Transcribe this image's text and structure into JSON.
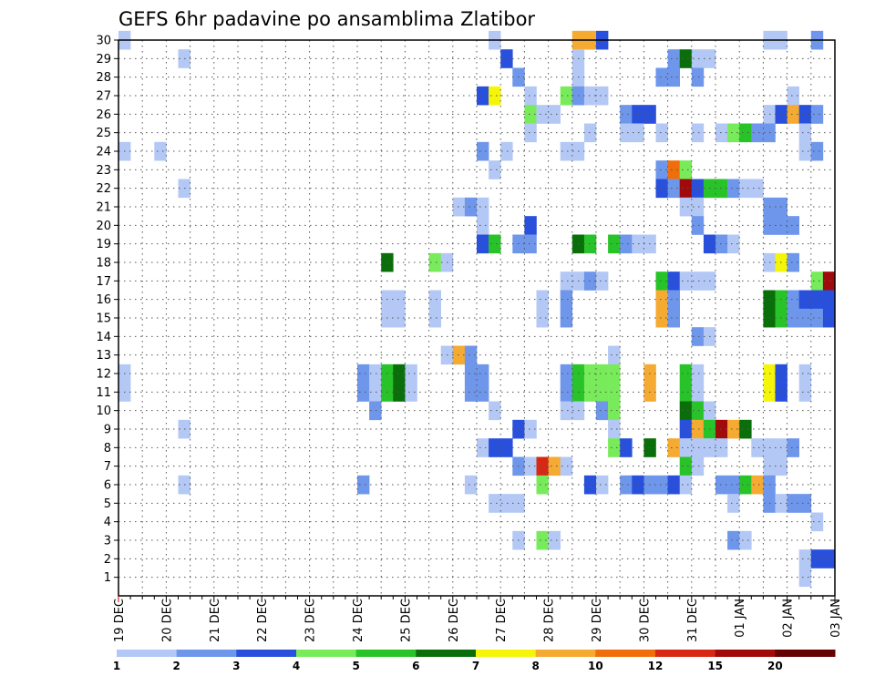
{
  "chart_data": {
    "type": "heatmap",
    "title": "GEFS 6hr padavine po ansamblima Zlatibor",
    "xlabel": "",
    "ylabel": "",
    "y_tick_labels": [
      "1",
      "2",
      "3",
      "4",
      "5",
      "6",
      "7",
      "8",
      "9",
      "10",
      "11",
      "12",
      "13",
      "14",
      "15",
      "16",
      "17",
      "18",
      "19",
      "20",
      "21",
      "22",
      "23",
      "24",
      "25",
      "26",
      "27",
      "28",
      "29",
      "30"
    ],
    "x_tick_labels": [
      "19 DEC",
      "20 DEC",
      "21 DEC",
      "22 DEC",
      "23 DEC",
      "24 DEC",
      "25 DEC",
      "26 DEC",
      "27 DEC",
      "28 DEC",
      "29 DEC",
      "30 DEC",
      "31 DEC",
      "01 JAN",
      "02 JAN",
      "03 JAN"
    ],
    "x_range_steps": [
      0,
      60
    ],
    "steps_per_day": 4,
    "y_range_members": [
      0,
      30
    ],
    "grid": true,
    "legend_placement": "bottom",
    "colorbar": {
      "labels": [
        "1",
        "2",
        "3",
        "4",
        "5",
        "6",
        "7",
        "8",
        "10",
        "12",
        "15",
        "20"
      ],
      "colors": [
        "#b4c8f5",
        "#6e96eb",
        "#2850dc",
        "#78eb5a",
        "#28c328",
        "#0a6e0a",
        "#f5f50a",
        "#f5aa32",
        "#f06e0a",
        "#d72814",
        "#a00a0a",
        "#640000"
      ]
    },
    "cells": [
      {
        "m": 30,
        "t": 1,
        "c": 1
      },
      {
        "m": 30,
        "t": 32,
        "c": 1
      },
      {
        "m": 30,
        "t": 39,
        "c": 8
      },
      {
        "m": 30,
        "t": 40,
        "c": 8
      },
      {
        "m": 30,
        "t": 41,
        "c": 3
      },
      {
        "m": 30,
        "t": 55,
        "c": 1
      },
      {
        "m": 30,
        "t": 56,
        "c": 1
      },
      {
        "m": 30,
        "t": 59,
        "c": 2
      },
      {
        "m": 29,
        "t": 6,
        "c": 1
      },
      {
        "m": 29,
        "t": 33,
        "c": 3
      },
      {
        "m": 29,
        "t": 39,
        "c": 1
      },
      {
        "m": 29,
        "t": 47,
        "c": 2
      },
      {
        "m": 29,
        "t": 48,
        "c": 6
      },
      {
        "m": 29,
        "t": 49,
        "c": 1
      },
      {
        "m": 29,
        "t": 50,
        "c": 1
      },
      {
        "m": 28,
        "t": 34,
        "c": 2
      },
      {
        "m": 28,
        "t": 39,
        "c": 1
      },
      {
        "m": 28,
        "t": 46,
        "c": 2
      },
      {
        "m": 28,
        "t": 47,
        "c": 2
      },
      {
        "m": 28,
        "t": 49,
        "c": 2
      },
      {
        "m": 27,
        "t": 31,
        "c": 3
      },
      {
        "m": 27,
        "t": 32,
        "c": 7
      },
      {
        "m": 27,
        "t": 35,
        "c": 1
      },
      {
        "m": 27,
        "t": 38,
        "c": 4
      },
      {
        "m": 27,
        "t": 39,
        "c": 2
      },
      {
        "m": 27,
        "t": 40,
        "c": 1
      },
      {
        "m": 27,
        "t": 41,
        "c": 1
      },
      {
        "m": 27,
        "t": 57,
        "c": 1
      },
      {
        "m": 26,
        "t": 35,
        "c": 4
      },
      {
        "m": 26,
        "t": 36,
        "c": 1
      },
      {
        "m": 26,
        "t": 37,
        "c": 1
      },
      {
        "m": 26,
        "t": 43,
        "c": 2
      },
      {
        "m": 26,
        "t": 44,
        "c": 3
      },
      {
        "m": 26,
        "t": 45,
        "c": 3
      },
      {
        "m": 26,
        "t": 55,
        "c": 1
      },
      {
        "m": 26,
        "t": 56,
        "c": 3
      },
      {
        "m": 26,
        "t": 57,
        "c": 8
      },
      {
        "m": 26,
        "t": 58,
        "c": 3
      },
      {
        "m": 26,
        "t": 59,
        "c": 2
      },
      {
        "m": 25,
        "t": 35,
        "c": 1
      },
      {
        "m": 25,
        "t": 40,
        "c": 1
      },
      {
        "m": 25,
        "t": 43,
        "c": 1
      },
      {
        "m": 25,
        "t": 44,
        "c": 1
      },
      {
        "m": 25,
        "t": 46,
        "c": 1
      },
      {
        "m": 25,
        "t": 49,
        "c": 1
      },
      {
        "m": 25,
        "t": 51,
        "c": 1
      },
      {
        "m": 25,
        "t": 52,
        "c": 4
      },
      {
        "m": 25,
        "t": 53,
        "c": 5
      },
      {
        "m": 25,
        "t": 54,
        "c": 2
      },
      {
        "m": 25,
        "t": 55,
        "c": 2
      },
      {
        "m": 25,
        "t": 58,
        "c": 1
      },
      {
        "m": 24,
        "t": 1,
        "c": 1
      },
      {
        "m": 24,
        "t": 4,
        "c": 1
      },
      {
        "m": 24,
        "t": 31,
        "c": 2
      },
      {
        "m": 24,
        "t": 33,
        "c": 1
      },
      {
        "m": 24,
        "t": 38,
        "c": 1
      },
      {
        "m": 24,
        "t": 39,
        "c": 1
      },
      {
        "m": 24,
        "t": 58,
        "c": 1
      },
      {
        "m": 24,
        "t": 59,
        "c": 2
      },
      {
        "m": 23,
        "t": 32,
        "c": 1
      },
      {
        "m": 23,
        "t": 46,
        "c": 2
      },
      {
        "m": 23,
        "t": 47,
        "c": 9
      },
      {
        "m": 23,
        "t": 48,
        "c": 4
      },
      {
        "m": 22,
        "t": 6,
        "c": 1
      },
      {
        "m": 22,
        "t": 46,
        "c": 3
      },
      {
        "m": 22,
        "t": 47,
        "c": 2
      },
      {
        "m": 22,
        "t": 48,
        "c": 11
      },
      {
        "m": 22,
        "t": 49,
        "c": 3
      },
      {
        "m": 22,
        "t": 50,
        "c": 5
      },
      {
        "m": 22,
        "t": 51,
        "c": 5
      },
      {
        "m": 22,
        "t": 52,
        "c": 2
      },
      {
        "m": 22,
        "t": 53,
        "c": 1
      },
      {
        "m": 22,
        "t": 54,
        "c": 1
      },
      {
        "m": 21,
        "t": 29,
        "c": 1
      },
      {
        "m": 21,
        "t": 30,
        "c": 2
      },
      {
        "m": 21,
        "t": 31,
        "c": 1
      },
      {
        "m": 21,
        "t": 48,
        "c": 1
      },
      {
        "m": 21,
        "t": 49,
        "c": 1
      },
      {
        "m": 21,
        "t": 55,
        "c": 2
      },
      {
        "m": 21,
        "t": 56,
        "c": 2
      },
      {
        "m": 20,
        "t": 31,
        "c": 1
      },
      {
        "m": 20,
        "t": 35,
        "c": 3
      },
      {
        "m": 20,
        "t": 49,
        "c": 2
      },
      {
        "m": 20,
        "t": 55,
        "c": 2
      },
      {
        "m": 20,
        "t": 56,
        "c": 2
      },
      {
        "m": 20,
        "t": 57,
        "c": 2
      },
      {
        "m": 19,
        "t": 31,
        "c": 3
      },
      {
        "m": 19,
        "t": 32,
        "c": 5
      },
      {
        "m": 19,
        "t": 34,
        "c": 2
      },
      {
        "m": 19,
        "t": 35,
        "c": 2
      },
      {
        "m": 19,
        "t": 39,
        "c": 6
      },
      {
        "m": 19,
        "t": 40,
        "c": 5
      },
      {
        "m": 19,
        "t": 42,
        "c": 5
      },
      {
        "m": 19,
        "t": 43,
        "c": 2
      },
      {
        "m": 19,
        "t": 44,
        "c": 1
      },
      {
        "m": 19,
        "t": 45,
        "c": 1
      },
      {
        "m": 19,
        "t": 50,
        "c": 3
      },
      {
        "m": 19,
        "t": 51,
        "c": 2
      },
      {
        "m": 19,
        "t": 52,
        "c": 1
      },
      {
        "m": 18,
        "t": 23,
        "c": 6
      },
      {
        "m": 18,
        "t": 27,
        "c": 4
      },
      {
        "m": 18,
        "t": 28,
        "c": 1
      },
      {
        "m": 18,
        "t": 55,
        "c": 1
      },
      {
        "m": 18,
        "t": 56,
        "c": 7
      },
      {
        "m": 18,
        "t": 57,
        "c": 2
      },
      {
        "m": 17,
        "t": 38,
        "c": 1
      },
      {
        "m": 17,
        "t": 39,
        "c": 1
      },
      {
        "m": 17,
        "t": 40,
        "c": 2
      },
      {
        "m": 17,
        "t": 41,
        "c": 1
      },
      {
        "m": 17,
        "t": 46,
        "c": 5
      },
      {
        "m": 17,
        "t": 47,
        "c": 3
      },
      {
        "m": 17,
        "t": 48,
        "c": 1
      },
      {
        "m": 17,
        "t": 49,
        "c": 1
      },
      {
        "m": 17,
        "t": 50,
        "c": 1
      },
      {
        "m": 17,
        "t": 59,
        "c": 4
      },
      {
        "m": 17,
        "t": 60,
        "c": 11
      },
      {
        "m": 16,
        "t": 23,
        "c": 1
      },
      {
        "m": 16,
        "t": 24,
        "c": 1
      },
      {
        "m": 16,
        "t": 27,
        "c": 1
      },
      {
        "m": 16,
        "t": 36,
        "c": 1
      },
      {
        "m": 16,
        "t": 38,
        "c": 2
      },
      {
        "m": 16,
        "t": 46,
        "c": 8
      },
      {
        "m": 16,
        "t": 47,
        "c": 2
      },
      {
        "m": 16,
        "t": 55,
        "c": 6
      },
      {
        "m": 16,
        "t": 56,
        "c": 5
      },
      {
        "m": 16,
        "t": 57,
        "c": 2
      },
      {
        "m": 16,
        "t": 58,
        "c": 3
      },
      {
        "m": 16,
        "t": 59,
        "c": 3
      },
      {
        "m": 16,
        "t": 60,
        "c": 3
      },
      {
        "m": 15,
        "t": 23,
        "c": 1
      },
      {
        "m": 15,
        "t": 24,
        "c": 1
      },
      {
        "m": 15,
        "t": 27,
        "c": 1
      },
      {
        "m": 15,
        "t": 36,
        "c": 1
      },
      {
        "m": 15,
        "t": 38,
        "c": 2
      },
      {
        "m": 15,
        "t": 46,
        "c": 8
      },
      {
        "m": 15,
        "t": 47,
        "c": 2
      },
      {
        "m": 15,
        "t": 55,
        "c": 6
      },
      {
        "m": 15,
        "t": 56,
        "c": 5
      },
      {
        "m": 15,
        "t": 57,
        "c": 2
      },
      {
        "m": 15,
        "t": 58,
        "c": 2
      },
      {
        "m": 15,
        "t": 59,
        "c": 2
      },
      {
        "m": 15,
        "t": 60,
        "c": 3
      },
      {
        "m": 14,
        "t": 49,
        "c": 2
      },
      {
        "m": 14,
        "t": 50,
        "c": 1
      },
      {
        "m": 13,
        "t": 28,
        "c": 1
      },
      {
        "m": 13,
        "t": 29,
        "c": 8
      },
      {
        "m": 13,
        "t": 30,
        "c": 2
      },
      {
        "m": 13,
        "t": 42,
        "c": 1
      },
      {
        "m": 12,
        "t": 1,
        "c": 1
      },
      {
        "m": 12,
        "t": 21,
        "c": 2
      },
      {
        "m": 12,
        "t": 22,
        "c": 1
      },
      {
        "m": 12,
        "t": 23,
        "c": 5
      },
      {
        "m": 12,
        "t": 24,
        "c": 6
      },
      {
        "m": 12,
        "t": 25,
        "c": 1
      },
      {
        "m": 12,
        "t": 30,
        "c": 2
      },
      {
        "m": 12,
        "t": 31,
        "c": 2
      },
      {
        "m": 12,
        "t": 38,
        "c": 2
      },
      {
        "m": 12,
        "t": 39,
        "c": 5
      },
      {
        "m": 12,
        "t": 40,
        "c": 4
      },
      {
        "m": 12,
        "t": 41,
        "c": 4
      },
      {
        "m": 12,
        "t": 42,
        "c": 4
      },
      {
        "m": 12,
        "t": 45,
        "c": 8
      },
      {
        "m": 12,
        "t": 48,
        "c": 5
      },
      {
        "m": 12,
        "t": 49,
        "c": 1
      },
      {
        "m": 12,
        "t": 55,
        "c": 7
      },
      {
        "m": 12,
        "t": 56,
        "c": 3
      },
      {
        "m": 12,
        "t": 58,
        "c": 1
      },
      {
        "m": 11,
        "t": 1,
        "c": 1
      },
      {
        "m": 11,
        "t": 21,
        "c": 2
      },
      {
        "m": 11,
        "t": 22,
        "c": 1
      },
      {
        "m": 11,
        "t": 23,
        "c": 5
      },
      {
        "m": 11,
        "t": 24,
        "c": 6
      },
      {
        "m": 11,
        "t": 25,
        "c": 1
      },
      {
        "m": 11,
        "t": 30,
        "c": 2
      },
      {
        "m": 11,
        "t": 31,
        "c": 2
      },
      {
        "m": 11,
        "t": 38,
        "c": 2
      },
      {
        "m": 11,
        "t": 39,
        "c": 5
      },
      {
        "m": 11,
        "t": 40,
        "c": 4
      },
      {
        "m": 11,
        "t": 41,
        "c": 4
      },
      {
        "m": 11,
        "t": 42,
        "c": 4
      },
      {
        "m": 11,
        "t": 45,
        "c": 8
      },
      {
        "m": 11,
        "t": 48,
        "c": 5
      },
      {
        "m": 11,
        "t": 49,
        "c": 1
      },
      {
        "m": 11,
        "t": 55,
        "c": 7
      },
      {
        "m": 11,
        "t": 56,
        "c": 3
      },
      {
        "m": 11,
        "t": 58,
        "c": 1
      },
      {
        "m": 10,
        "t": 22,
        "c": 2
      },
      {
        "m": 10,
        "t": 32,
        "c": 1
      },
      {
        "m": 10,
        "t": 38,
        "c": 1
      },
      {
        "m": 10,
        "t": 39,
        "c": 1
      },
      {
        "m": 10,
        "t": 41,
        "c": 2
      },
      {
        "m": 10,
        "t": 42,
        "c": 4
      },
      {
        "m": 10,
        "t": 48,
        "c": 6
      },
      {
        "m": 10,
        "t": 49,
        "c": 5
      },
      {
        "m": 10,
        "t": 50,
        "c": 1
      },
      {
        "m": 9,
        "t": 6,
        "c": 1
      },
      {
        "m": 9,
        "t": 34,
        "c": 3
      },
      {
        "m": 9,
        "t": 35,
        "c": 1
      },
      {
        "m": 9,
        "t": 42,
        "c": 1
      },
      {
        "m": 9,
        "t": 48,
        "c": 3
      },
      {
        "m": 9,
        "t": 49,
        "c": 8
      },
      {
        "m": 9,
        "t": 50,
        "c": 5
      },
      {
        "m": 9,
        "t": 51,
        "c": 11
      },
      {
        "m": 9,
        "t": 52,
        "c": 8
      },
      {
        "m": 9,
        "t": 53,
        "c": 6
      },
      {
        "m": 8,
        "t": 31,
        "c": 1
      },
      {
        "m": 8,
        "t": 32,
        "c": 3
      },
      {
        "m": 8,
        "t": 33,
        "c": 3
      },
      {
        "m": 8,
        "t": 42,
        "c": 4
      },
      {
        "m": 8,
        "t": 43,
        "c": 3
      },
      {
        "m": 8,
        "t": 45,
        "c": 6
      },
      {
        "m": 8,
        "t": 47,
        "c": 8
      },
      {
        "m": 8,
        "t": 48,
        "c": 1
      },
      {
        "m": 8,
        "t": 49,
        "c": 1
      },
      {
        "m": 8,
        "t": 50,
        "c": 1
      },
      {
        "m": 8,
        "t": 51,
        "c": 1
      },
      {
        "m": 8,
        "t": 54,
        "c": 1
      },
      {
        "m": 8,
        "t": 55,
        "c": 1
      },
      {
        "m": 8,
        "t": 56,
        "c": 1
      },
      {
        "m": 8,
        "t": 57,
        "c": 2
      },
      {
        "m": 7,
        "t": 34,
        "c": 2
      },
      {
        "m": 7,
        "t": 35,
        "c": 1
      },
      {
        "m": 7,
        "t": 36,
        "c": 10
      },
      {
        "m": 7,
        "t": 37,
        "c": 8
      },
      {
        "m": 7,
        "t": 38,
        "c": 1
      },
      {
        "m": 7,
        "t": 48,
        "c": 5
      },
      {
        "m": 7,
        "t": 49,
        "c": 1
      },
      {
        "m": 7,
        "t": 55,
        "c": 1
      },
      {
        "m": 7,
        "t": 56,
        "c": 1
      },
      {
        "m": 6,
        "t": 6,
        "c": 1
      },
      {
        "m": 6,
        "t": 21,
        "c": 2
      },
      {
        "m": 6,
        "t": 30,
        "c": 1
      },
      {
        "m": 6,
        "t": 36,
        "c": 4
      },
      {
        "m": 6,
        "t": 40,
        "c": 3
      },
      {
        "m": 6,
        "t": 41,
        "c": 1
      },
      {
        "m": 6,
        "t": 43,
        "c": 2
      },
      {
        "m": 6,
        "t": 44,
        "c": 3
      },
      {
        "m": 6,
        "t": 45,
        "c": 2
      },
      {
        "m": 6,
        "t": 46,
        "c": 2
      },
      {
        "m": 6,
        "t": 47,
        "c": 3
      },
      {
        "m": 6,
        "t": 48,
        "c": 1
      },
      {
        "m": 6,
        "t": 51,
        "c": 2
      },
      {
        "m": 6,
        "t": 52,
        "c": 2
      },
      {
        "m": 6,
        "t": 53,
        "c": 5
      },
      {
        "m": 6,
        "t": 54,
        "c": 8
      },
      {
        "m": 6,
        "t": 55,
        "c": 2
      },
      {
        "m": 5,
        "t": 32,
        "c": 1
      },
      {
        "m": 5,
        "t": 33,
        "c": 1
      },
      {
        "m": 5,
        "t": 34,
        "c": 1
      },
      {
        "m": 5,
        "t": 52,
        "c": 1
      },
      {
        "m": 5,
        "t": 55,
        "c": 2
      },
      {
        "m": 5,
        "t": 56,
        "c": 1
      },
      {
        "m": 5,
        "t": 57,
        "c": 2
      },
      {
        "m": 5,
        "t": 58,
        "c": 2
      },
      {
        "m": 4,
        "t": 59,
        "c": 1
      },
      {
        "m": 3,
        "t": 34,
        "c": 1
      },
      {
        "m": 3,
        "t": 36,
        "c": 4
      },
      {
        "m": 3,
        "t": 37,
        "c": 1
      },
      {
        "m": 3,
        "t": 52,
        "c": 2
      },
      {
        "m": 3,
        "t": 53,
        "c": 1
      },
      {
        "m": 2,
        "t": 58,
        "c": 1
      },
      {
        "m": 2,
        "t": 59,
        "c": 3
      },
      {
        "m": 2,
        "t": 60,
        "c": 3
      },
      {
        "m": 1,
        "t": 58,
        "c": 1
      }
    ]
  }
}
